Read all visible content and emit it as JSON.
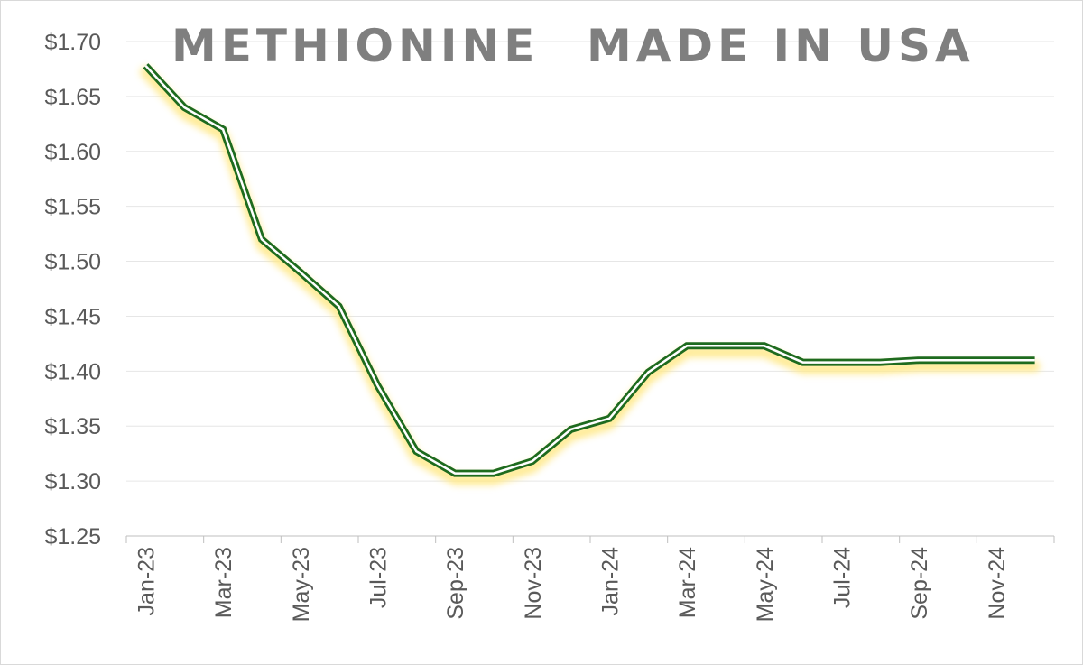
{
  "chart_data": {
    "type": "line",
    "title_parts": [
      "METHIONINE",
      "MADE IN USA"
    ],
    "xlabel": "",
    "ylabel": "",
    "ylim": [
      1.25,
      1.7
    ],
    "y_ticks": [
      "$1.25",
      "$1.30",
      "$1.35",
      "$1.40",
      "$1.45",
      "$1.50",
      "$1.55",
      "$1.60",
      "$1.65",
      "$1.70"
    ],
    "x_tick_labels": [
      "Jan-23",
      "Mar-23",
      "May-23",
      "Jul-23",
      "Sep-23",
      "Nov-23",
      "Jan-24",
      "Mar-24",
      "May-24",
      "Jul-24",
      "Sep-24",
      "Nov-24"
    ],
    "grid": true,
    "legend": "none",
    "colors": {
      "line": "#1e6b1e",
      "glow": "#ffe98a",
      "grid": "#e6e6e6",
      "axis": "#bfbfbf"
    },
    "series": [
      {
        "x": [
          "Jan-23",
          "Feb-23",
          "Mar-23",
          "Apr-23",
          "May-23",
          "Jun-23",
          "Jul-23",
          "Aug-23",
          "Sep-23",
          "Oct-23",
          "Nov-23",
          "Dec-23",
          "Jan-24",
          "Feb-24",
          "Mar-24",
          "Apr-24",
          "May-24",
          "Jun-24",
          "Jul-24",
          "Aug-24",
          "Sep-24",
          "Oct-24",
          "Nov-24",
          "Dec-24"
        ],
        "values": [
          1.678,
          1.64,
          1.62,
          1.52,
          1.49,
          1.459,
          1.387,
          1.327,
          1.307,
          1.307,
          1.318,
          1.347,
          1.357,
          1.399,
          1.423,
          1.423,
          1.423,
          1.408,
          1.408,
          1.408,
          1.41,
          1.41,
          1.41,
          1.41
        ]
      }
    ]
  }
}
